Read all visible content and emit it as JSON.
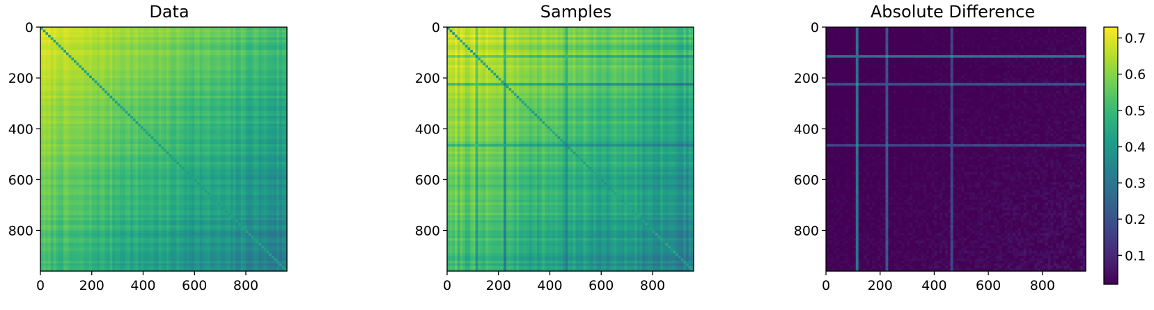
{
  "colors": {
    "viridis": [
      "#440154",
      "#482878",
      "#3e4989",
      "#31688e",
      "#26828e",
      "#1f9e89",
      "#35b779",
      "#6ece58",
      "#b5de2b",
      "#fde725"
    ]
  },
  "chart_data": [
    {
      "type": "heatmap",
      "title": "Data",
      "xlabel": "",
      "ylabel": "",
      "xlim": [
        0,
        960
      ],
      "ylim": [
        960,
        0
      ],
      "xticks": [
        "0",
        "200",
        "400",
        "600",
        "800"
      ],
      "yticks": [
        "0",
        "200",
        "400",
        "600",
        "800"
      ],
      "value_range": [
        0.3,
        0.72
      ],
      "pattern": "similarity matrix; values highest (~0.7) toward top-left, decreasing toward bottom-right (~0.35), with banded row/column structure"
    },
    {
      "type": "heatmap",
      "title": "Samples",
      "xlabel": "",
      "ylabel": "",
      "xlim": [
        0,
        960
      ],
      "ylim": [
        960,
        0
      ],
      "xticks": [
        "0",
        "200",
        "400",
        "600",
        "800"
      ],
      "yticks": [
        "0",
        "200",
        "400",
        "600",
        "800"
      ],
      "value_range": [
        0.3,
        0.72
      ],
      "pattern": "similarity matrix similar to Data, with visible vertical/horizontal lines near indices 110, 220, 460"
    },
    {
      "type": "heatmap",
      "title": "Absolute Difference",
      "xlabel": "",
      "ylabel": "",
      "xlim": [
        0,
        960
      ],
      "ylim": [
        960,
        0
      ],
      "xticks": [
        "0",
        "200",
        "400",
        "600",
        "800"
      ],
      "yticks": [
        "0",
        "200",
        "400",
        "600",
        "800"
      ],
      "value_range": [
        0.0,
        0.25
      ],
      "pattern": "mostly near zero (dark purple) with faint lines at indices ~110 and ~220 and scattered speckle"
    }
  ],
  "colorbar": {
    "ticks": [
      "0.1",
      "0.2",
      "0.3",
      "0.4",
      "0.5",
      "0.6",
      "0.7"
    ],
    "range": [
      0.02,
      0.73
    ]
  }
}
